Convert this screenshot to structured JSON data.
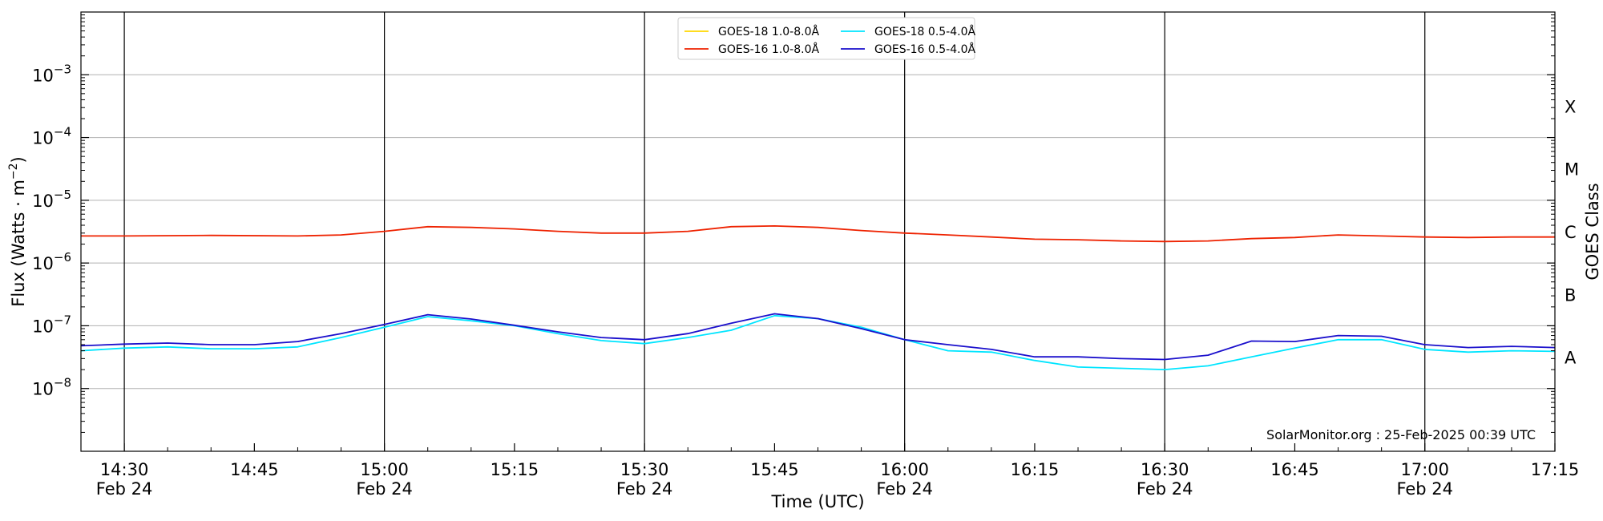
{
  "chart_data": {
    "type": "line",
    "xlabel": "Time (UTC)",
    "ylabel_prefix": "Flux (Watts · m",
    "ylabel_exp": "−2",
    "ylabel_suffix": ")",
    "right_label": "GOES Class",
    "credit": "SolarMonitor.org : 25-Feb-2025 00:39 UTC",
    "y_scale": "log",
    "ylim": [
      1e-09,
      0.01
    ],
    "xlim": [
      "14:25",
      "17:15"
    ],
    "grid": "horizontal at decades, vertical lines every 30 minutes",
    "legend_position": "top-center",
    "y_ticks": [
      {
        "value": 1e-08,
        "base": "10",
        "exp": "−8"
      },
      {
        "value": 1e-07,
        "base": "10",
        "exp": "−7"
      },
      {
        "value": 1e-06,
        "base": "10",
        "exp": "−6"
      },
      {
        "value": 1e-05,
        "base": "10",
        "exp": "−5"
      },
      {
        "value": 0.0001,
        "base": "10",
        "exp": "−4"
      },
      {
        "value": 0.001,
        "base": "10",
        "exp": "−3"
      }
    ],
    "x_ticks": [
      {
        "time": "14:30",
        "label": "14:30",
        "date": "Feb 24"
      },
      {
        "time": "14:45",
        "label": "14:45",
        "date": ""
      },
      {
        "time": "15:00",
        "label": "15:00",
        "date": "Feb 24"
      },
      {
        "time": "15:15",
        "label": "15:15",
        "date": ""
      },
      {
        "time": "15:30",
        "label": "15:30",
        "date": "Feb 24"
      },
      {
        "time": "15:45",
        "label": "15:45",
        "date": ""
      },
      {
        "time": "16:00",
        "label": "16:00",
        "date": "Feb 24"
      },
      {
        "time": "16:15",
        "label": "16:15",
        "date": ""
      },
      {
        "time": "16:30",
        "label": "16:30",
        "date": "Feb 24"
      },
      {
        "time": "16:45",
        "label": "16:45",
        "date": ""
      },
      {
        "time": "17:00",
        "label": "17:00",
        "date": "Feb 24"
      },
      {
        "time": "17:15",
        "label": "17:15",
        "date": ""
      }
    ],
    "goes_classes": [
      {
        "label": "A",
        "value": 3.16e-08
      },
      {
        "label": "B",
        "value": 3.16e-07
      },
      {
        "label": "C",
        "value": 3.16e-06
      },
      {
        "label": "M",
        "value": 3.16e-05
      },
      {
        "label": "X",
        "value": 0.000316
      }
    ],
    "series": [
      {
        "name": "GOES-18 1.0-8.0Å",
        "color": "#ffd700",
        "x": [],
        "values": []
      },
      {
        "name": "GOES-16 1.0-8.0Å",
        "color": "#ee2200",
        "x": [
          "14:25",
          "14:30",
          "14:40",
          "14:50",
          "14:55",
          "15:00",
          "15:05",
          "15:10",
          "15:15",
          "15:20",
          "15:25",
          "15:30",
          "15:35",
          "15:40",
          "15:45",
          "15:50",
          "15:55",
          "16:00",
          "16:05",
          "16:10",
          "16:15",
          "16:20",
          "16:25",
          "16:30",
          "16:35",
          "16:40",
          "16:45",
          "16:50",
          "16:55",
          "17:00",
          "17:05",
          "17:10",
          "17:15"
        ],
        "values": [
          2.7e-06,
          2.7e-06,
          2.75e-06,
          2.7e-06,
          2.8e-06,
          3.2e-06,
          3.8e-06,
          3.7e-06,
          3.5e-06,
          3.2e-06,
          3e-06,
          3e-06,
          3.2e-06,
          3.8e-06,
          3.9e-06,
          3.7e-06,
          3.3e-06,
          3e-06,
          2.8e-06,
          2.6e-06,
          2.4e-06,
          2.35e-06,
          2.25e-06,
          2.2e-06,
          2.25e-06,
          2.45e-06,
          2.55e-06,
          2.8e-06,
          2.7e-06,
          2.6e-06,
          2.55e-06,
          2.6e-06,
          2.6e-06
        ]
      },
      {
        "name": "GOES-18 0.5-4.0Å",
        "color": "#00e5ff",
        "x": [
          "14:25",
          "14:30",
          "14:35",
          "14:40",
          "14:45",
          "14:50",
          "14:55",
          "15:00",
          "15:05",
          "15:10",
          "15:15",
          "15:20",
          "15:25",
          "15:30",
          "15:35",
          "15:40",
          "15:45",
          "15:50",
          "15:55",
          "16:00",
          "16:05",
          "16:10",
          "16:15",
          "16:20",
          "16:25",
          "16:30",
          "16:35",
          "16:40",
          "16:45",
          "16:50",
          "16:55",
          "17:00",
          "17:05",
          "17:10",
          "17:15"
        ],
        "values": [
          4e-08,
          4.4e-08,
          4.6e-08,
          4.3e-08,
          4.3e-08,
          4.6e-08,
          6.5e-08,
          9.5e-08,
          1.4e-07,
          1.2e-07,
          1e-07,
          7.5e-08,
          5.8e-08,
          5.2e-08,
          6.5e-08,
          8.5e-08,
          1.45e-07,
          1.3e-07,
          9.5e-08,
          6e-08,
          4e-08,
          3.8e-08,
          2.8e-08,
          2.2e-08,
          2.1e-08,
          2e-08,
          2.3e-08,
          3.2e-08,
          4.4e-08,
          6e-08,
          6e-08,
          4.2e-08,
          3.8e-08,
          4e-08,
          3.9e-08
        ]
      },
      {
        "name": "GOES-16 0.5-4.0Å",
        "color": "#1a0fcc",
        "x": [
          "14:25",
          "14:30",
          "14:35",
          "14:40",
          "14:45",
          "14:50",
          "14:55",
          "15:00",
          "15:05",
          "15:10",
          "15:15",
          "15:20",
          "15:25",
          "15:30",
          "15:35",
          "15:40",
          "15:45",
          "15:50",
          "15:55",
          "16:00",
          "16:05",
          "16:10",
          "16:15",
          "16:20",
          "16:25",
          "16:30",
          "16:35",
          "16:40",
          "16:45",
          "16:50",
          "16:55",
          "17:00",
          "17:05",
          "17:10",
          "17:15"
        ],
        "values": [
          4.8e-08,
          5.1e-08,
          5.3e-08,
          5e-08,
          5e-08,
          5.6e-08,
          7.5e-08,
          1.05e-07,
          1.5e-07,
          1.28e-07,
          1.02e-07,
          8e-08,
          6.5e-08,
          6e-08,
          7.5e-08,
          1.1e-07,
          1.55e-07,
          1.3e-07,
          9e-08,
          6e-08,
          5e-08,
          4.2e-08,
          3.2e-08,
          3.2e-08,
          3e-08,
          2.9e-08,
          3.4e-08,
          5.7e-08,
          5.6e-08,
          7e-08,
          6.8e-08,
          5e-08,
          4.5e-08,
          4.7e-08,
          4.5e-08
        ]
      }
    ]
  }
}
